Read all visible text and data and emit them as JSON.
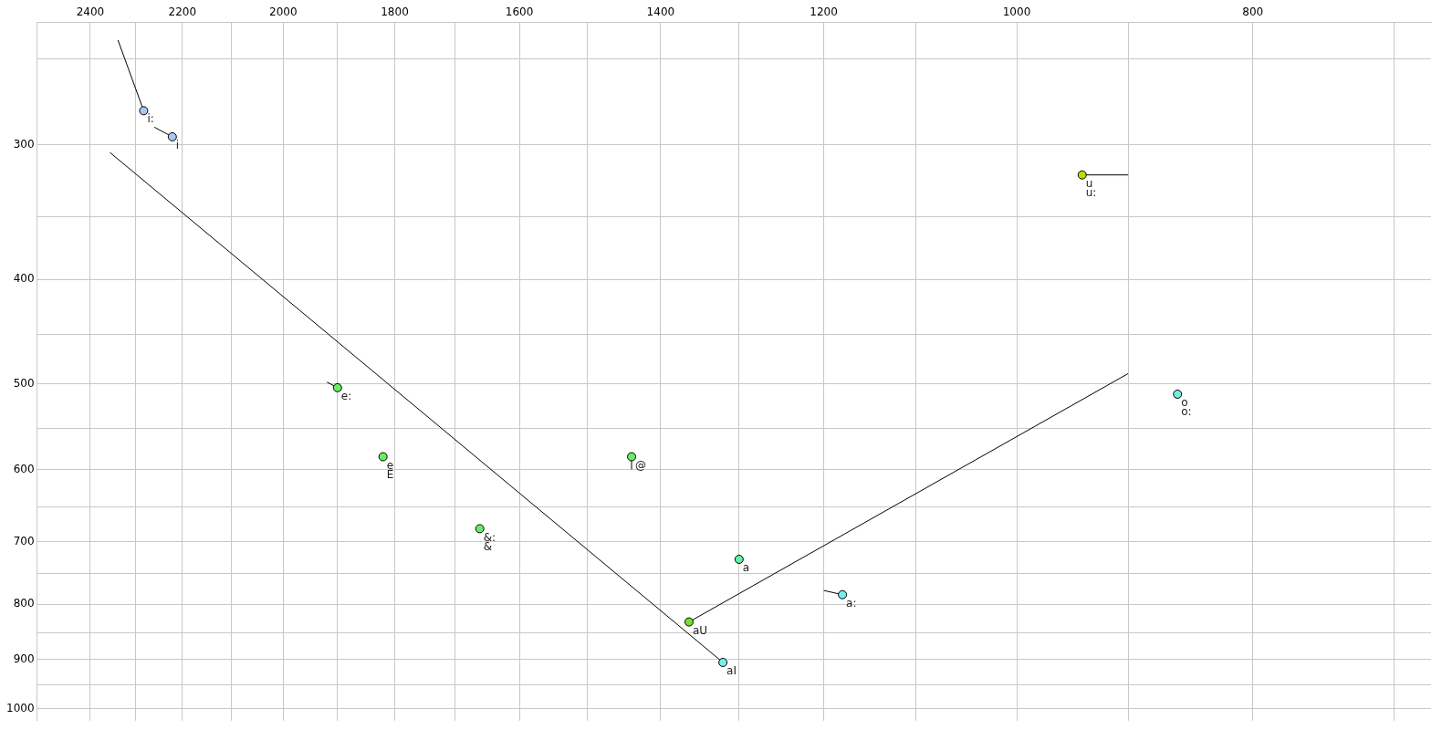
{
  "chart_data": {
    "type": "scatter",
    "log": "xy",
    "grid": true,
    "legend": false,
    "marker": "circle",
    "xlim": [
      2524,
      676
    ],
    "ylim": [
      1026,
      231
    ],
    "xticks": [
      2400,
      {
        "value": 2300,
        "label": null
      },
      2200,
      {
        "value": 2100,
        "label": null
      },
      2000,
      {
        "value": 1900,
        "label": null
      },
      1800,
      {
        "value": 1700,
        "label": null
      },
      1600,
      {
        "value": 1500,
        "label": null
      },
      1400,
      {
        "value": 1300,
        "label": null
      },
      1200,
      {
        "value": 1100,
        "label": null
      },
      1000,
      {
        "value": 900,
        "label": null
      },
      800,
      {
        "value": 700,
        "label": null
      }
    ],
    "yticks": [
      {
        "value": 250,
        "label": null
      },
      300,
      {
        "value": 350,
        "label": null
      },
      400,
      {
        "value": 450,
        "label": null
      },
      500,
      {
        "value": 550,
        "label": null
      },
      600,
      {
        "value": 650,
        "label": null
      },
      700,
      {
        "value": 750,
        "label": null
      },
      800,
      {
        "value": 850,
        "label": null
      },
      900,
      {
        "value": 950,
        "label": null
      },
      1000
    ],
    "series": [
      {
        "type": "line",
        "marker": "none",
        "color": "#000000",
        "x": [
          2338,
          2282
        ],
        "values": [
          240,
          279
        ]
      },
      {
        "type": "line",
        "marker": "none",
        "color": "#000000",
        "x": [
          2259,
          2221
        ],
        "values": [
          289,
          295
        ]
      },
      {
        "type": "line",
        "marker": "none",
        "color": "#000000",
        "x": [
          1919,
          1900
        ],
        "values": [
          498,
          504
        ]
      },
      {
        "type": "line",
        "marker": "none",
        "color": "#000000",
        "x": [
          1439,
          1439
        ],
        "values": [
          600,
          584
        ]
      },
      {
        "type": "line",
        "marker": "none",
        "color": "#000000",
        "x": [
          1200,
          1179
        ],
        "values": [
          777,
          784
        ]
      },
      {
        "type": "line",
        "marker": "none",
        "color": "#000000",
        "x": [
          900,
          1363
        ],
        "values": [
          489,
          831
        ]
      },
      {
        "type": "line",
        "marker": "none",
        "color": "#000000",
        "x": [
          2356,
          1320
        ],
        "values": [
          305,
          906
        ]
      },
      {
        "type": "line",
        "marker": "none",
        "color": "#000000",
        "x": [
          900,
          940
        ],
        "values": [
          320,
          320
        ]
      },
      {
        "x": [
          2282,
          2221,
          1900,
          1820,
          1661,
          1439,
          1300,
          1179,
          1363,
          1320,
          940,
          859
        ],
        "values": [
          279,
          295,
          504,
          584,
          681,
          584,
          727,
          784,
          831,
          906,
          320,
          511
        ],
        "colors": [
          "#a8c8f0",
          "#a8c8f0",
          "#66ee66",
          "#66ee66",
          "#66ee66",
          "#66ee66",
          "#66eeaa",
          "#77eeee",
          "#77dd33",
          "#77eeee",
          "#bbdd00",
          "#77eedd"
        ],
        "value_labels": [
          "i:",
          "i",
          "e:",
          "e\nE",
          "&:\n&",
          "@",
          "a",
          "a:",
          "aU",
          "aI",
          "u\nu:",
          "o\no:"
        ]
      }
    ]
  }
}
